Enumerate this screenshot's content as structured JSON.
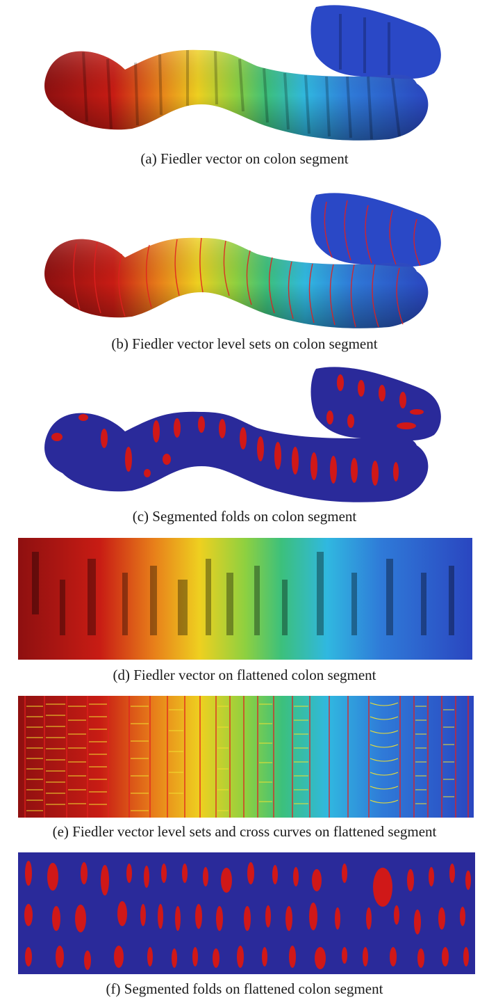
{
  "figure": {
    "captions": {
      "a": "(a) Fiedler vector on colon segment",
      "b": "(b) Fiedler vector level sets on colon segment",
      "c": "(c) Segmented folds on colon segment",
      "d": "(d) Fiedler vector on flattened colon segment",
      "e": "(e) Fiedler vector level sets and cross curves on flattened segment",
      "f": "(f) Segmented folds on flattened colon segment"
    },
    "colors": {
      "red": "#b0141a",
      "orange": "#e8801a",
      "yellow": "#e8d020",
      "green": "#40c040",
      "cyan": "#30b8e0",
      "blue": "#2a4ec8",
      "fold_blue": "#2a2a9a",
      "fold_red": "#d01818",
      "level_set_red": "#e02020",
      "cross_curve_yellow": "#f0e030"
    }
  }
}
